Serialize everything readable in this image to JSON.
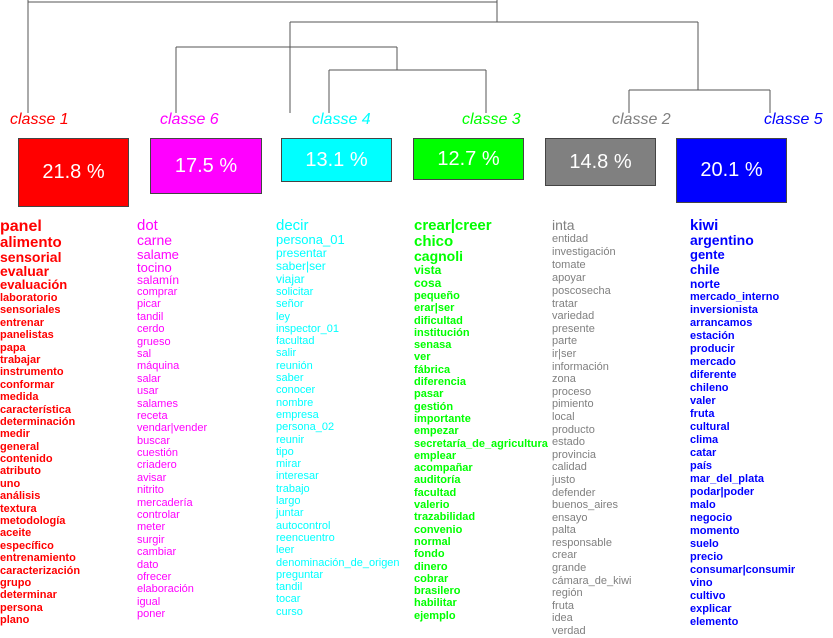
{
  "tree": {
    "stroke": "#555555"
  },
  "classes": [
    {
      "id": "c1",
      "label": "classe 1",
      "percent": "21.8 %",
      "color": "#ff0000",
      "text_color": "#ffffff",
      "words": [
        "panel",
        "alimento",
        "sensorial",
        "evaluar",
        "evaluación",
        "laboratorio",
        "sensoriales",
        "entrenar",
        "panelistas",
        "papa",
        "trabajar",
        "instrumento",
        "conformar",
        "medida",
        "característica",
        "determinación",
        "medir",
        "general",
        "contenido",
        "atributo",
        "uno",
        "análisis",
        "textura",
        "metodología",
        "aceite",
        "específico",
        "entrenamiento",
        "caracterización",
        "grupo",
        "determinar",
        "persona",
        "plano"
      ]
    },
    {
      "id": "c6",
      "label": "classe 6",
      "percent": "17.5 %",
      "color": "#ff00ff",
      "text_color": "#ffffff",
      "words": [
        "dot",
        "carne",
        "salame",
        "tocino",
        "salamín",
        "comprar",
        "picar",
        "tandil",
        "cerdo",
        "grueso",
        "sal",
        "máquina",
        "salar",
        "usar",
        "salames",
        "receta",
        "vendar|vender",
        "buscar",
        "cuestión",
        "criadero",
        "avisar",
        "nitrito",
        "mercadería",
        "controlar",
        "meter",
        "surgir",
        "cambiar",
        "dato",
        "ofrecer",
        "elaboración",
        "igual",
        "poner"
      ]
    },
    {
      "id": "c4",
      "label": "classe 4",
      "percent": "13.1 %",
      "color": "#00ffff",
      "text_color": "#ffffff",
      "words": [
        "decir",
        "persona_01",
        "presentar",
        "saber|ser",
        "viajar",
        "solicitar",
        "señor",
        "ley",
        "inspector_01",
        "facultad",
        "salir",
        "reunión",
        "saber",
        "conocer",
        "nombre",
        "empresa",
        "persona_02",
        "reunir",
        "tipo",
        "mirar",
        "interesar",
        "trabajo",
        "largo",
        "juntar",
        "autocontrol",
        "reencuentro",
        "leer",
        "denominación_de_origen",
        "preguntar",
        "tandil",
        "tocar",
        "curso"
      ]
    },
    {
      "id": "c3",
      "label": "classe 3",
      "percent": "12.7 %",
      "color": "#00ff00",
      "text_color": "#ffffff",
      "words": [
        "crear|creer",
        "chico",
        "cagnoli",
        "vista",
        "cosa",
        "pequeño",
        "erar|ser",
        "dificultad",
        "institución",
        "senasa",
        "ver",
        "fábrica",
        "diferencia",
        "pasar",
        "gestión",
        "importante",
        "empezar",
        "secretaría_de_agricultura",
        "emplear",
        "acompañar",
        "auditoría",
        "facultad",
        "valerio",
        "trazabilidad",
        "convenio",
        "normal",
        "fondo",
        "dinero",
        "cobrar",
        "brasilero",
        "habilitar",
        "ejemplo"
      ]
    },
    {
      "id": "c2",
      "label": "classe 2",
      "percent": "14.8 %",
      "color": "#808080",
      "text_color": "#ffffff",
      "words": [
        "inta",
        "entidad",
        "investigación",
        "tomate",
        "apoyar",
        "poscosecha",
        "tratar",
        "variedad",
        "presente",
        "parte",
        "ir|ser",
        "información",
        "zona",
        "proceso",
        "pimiento",
        "local",
        "producto",
        "estado",
        "provincia",
        "calidad",
        "justo",
        "defender",
        "buenos_aires",
        "ensayo",
        "palta",
        "responsable",
        "crear",
        "grande",
        "cámara_de_kiwi",
        "región",
        "fruta",
        "idea",
        "verdad"
      ]
    },
    {
      "id": "c5",
      "label": "classe 5",
      "percent": "20.1 %",
      "color": "#0000ff",
      "text_color": "#ffffff",
      "words": [
        "kiwi",
        "argentino",
        "gente",
        "chile",
        "norte",
        "mercado_interno",
        "inversionista",
        "arrancamos",
        "estación",
        "producir",
        "mercado",
        "diferente",
        "chileno",
        "valer",
        "fruta",
        "cultural",
        "clima",
        "catar",
        "país",
        "mar_del_plata",
        "podar|poder",
        "malo",
        "negocio",
        "momento",
        "suelo",
        "precio",
        "consumar|consumir",
        "vino",
        "cultivo",
        "explicar",
        "elemento"
      ]
    }
  ]
}
